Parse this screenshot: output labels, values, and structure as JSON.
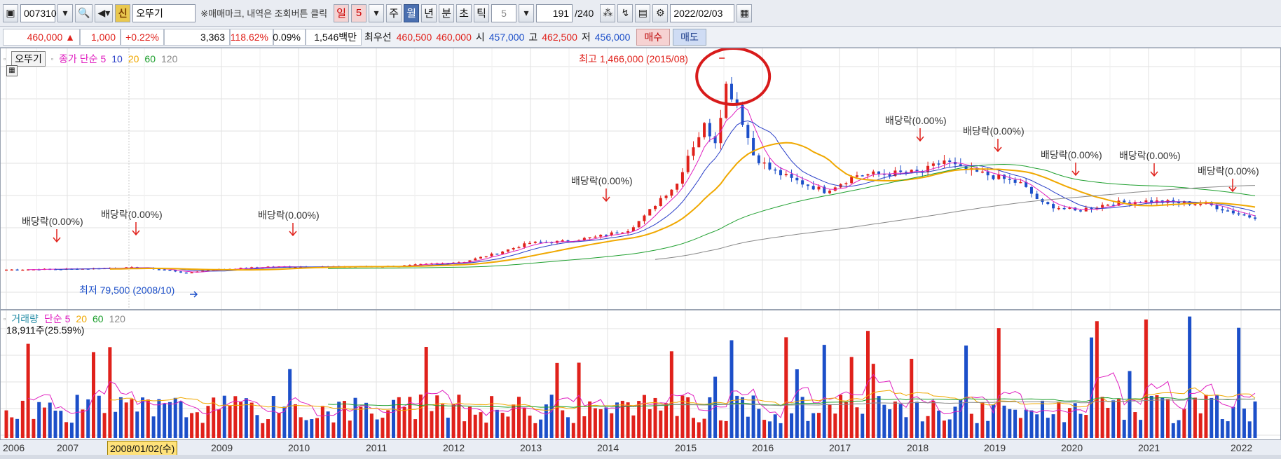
{
  "toolbar": {
    "code": "007310",
    "badge": "신",
    "name": "오뚜기",
    "note": "※매매마크, 내역은 조회버튼 클릭",
    "periods": [
      "일",
      "5",
      "주",
      "월",
      "년",
      "분",
      "초",
      "틱"
    ],
    "active_period": "월",
    "tick_value": "5",
    "count": "191",
    "count_total": "/240",
    "date": "2022/02/03"
  },
  "quote": {
    "price": "460,000",
    "change_arrow": "▲",
    "change": "1,000",
    "change_pct": "+0.22%",
    "volume": "3,363",
    "vol_ratio": "118.62%",
    "turnover": "0.09%",
    "amount": "1,546백만",
    "best_label": "최우선",
    "best_ask": "460,500",
    "best_bid": "460,000",
    "open_label": "시",
    "open": "457,000",
    "high_label": "고",
    "high": "462,500",
    "low_label": "저",
    "low": "456,000",
    "buy_label": "매수",
    "sell_label": "매도"
  },
  "price_pane": {
    "tab": "오뚜기",
    "legend_label": "종가 단순",
    "ma": [
      "5",
      "10",
      "20",
      "60",
      "120"
    ],
    "ma_colors": [
      "#e020c0",
      "#2a3fc8",
      "#f0a800",
      "#20a030",
      "#888888"
    ],
    "high_annotation": "최고 1,466,000 (2015/08)",
    "low_annotation": "최저 79,500 (2008/10)",
    "dividend_label": "배당락(0.00%)"
  },
  "volume_pane": {
    "title": "거래량",
    "legend_label": "단순",
    "ma": [
      "5",
      "20",
      "60",
      "120"
    ],
    "ma_colors": [
      "#e020c0",
      "#f0a800",
      "#20a030",
      "#888888"
    ],
    "current": "18,911주(25.59%)"
  },
  "xaxis": {
    "years": [
      "2006",
      "2007",
      "2009",
      "2010",
      "2011",
      "2012",
      "2013",
      "2014",
      "2015",
      "2016",
      "2017",
      "2018",
      "2019",
      "2020",
      "2021",
      "2022"
    ],
    "cursor_date": "2008/01/02(수)"
  },
  "chart_data": {
    "type": "candlestick",
    "interval": "monthly",
    "price_series_approx": [
      {
        "period": "2006",
        "close": 110000
      },
      {
        "period": "2007",
        "close": 120000
      },
      {
        "period": "2008",
        "close": 100000
      },
      {
        "period": "2008/10",
        "low": 79500
      },
      {
        "period": "2009",
        "close": 130000
      },
      {
        "period": "2010",
        "close": 125000
      },
      {
        "period": "2011",
        "close": 130000
      },
      {
        "period": "2012",
        "close": 160000
      },
      {
        "period": "2013",
        "close": 290000
      },
      {
        "period": "2014",
        "close": 420000
      },
      {
        "period": "2015/08",
        "high": 1466000
      },
      {
        "period": "2016",
        "close": 760000
      },
      {
        "period": "2017",
        "close": 750000
      },
      {
        "period": "2018",
        "close": 800000
      },
      {
        "period": "2019",
        "close": 600000
      },
      {
        "period": "2020",
        "close": 560000
      },
      {
        "period": "2021",
        "close": 520000
      },
      {
        "period": "2022",
        "close": 460000
      }
    ]
  }
}
